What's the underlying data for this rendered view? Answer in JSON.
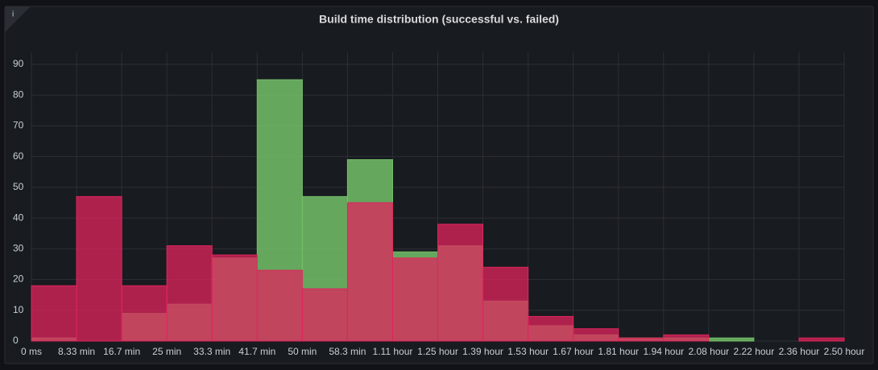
{
  "info_icon": "i",
  "chart_data": {
    "type": "histogram",
    "title": "Build time distribution (successful vs. failed)",
    "bins": [
      0,
      8.33,
      16.67,
      25,
      33.33,
      41.67,
      50,
      58.33,
      66.67,
      75,
      83.33,
      91.67,
      100,
      108.33,
      116.67,
      125,
      133.33,
      141.67,
      150
    ],
    "series": [
      {
        "color": "#73bf69",
        "values": [
          1,
          0,
          9,
          12,
          27,
          85,
          47,
          59,
          29,
          31,
          13,
          5,
          2,
          1,
          1,
          1,
          0,
          0
        ]
      },
      {
        "color": "#e0245e",
        "values": [
          18,
          47,
          18,
          31,
          28,
          23,
          17,
          45,
          27,
          38,
          24,
          8,
          4,
          1,
          2,
          0,
          0,
          1
        ]
      }
    ],
    "xlim": [
      0,
      150
    ],
    "xticks": [
      {
        "value": 0,
        "label": "0 ms"
      },
      {
        "value": 8.33,
        "label": "8.33 min"
      },
      {
        "value": 16.67,
        "label": "16.7 min"
      },
      {
        "value": 25,
        "label": "25 min"
      },
      {
        "value": 33.33,
        "label": "33.3 min"
      },
      {
        "value": 41.67,
        "label": "41.7 min"
      },
      {
        "value": 50,
        "label": "50 min"
      },
      {
        "value": 58.33,
        "label": "58.3 min"
      },
      {
        "value": 66.67,
        "label": "1.11 hour"
      },
      {
        "value": 75,
        "label": "1.25 hour"
      },
      {
        "value": 83.33,
        "label": "1.39 hour"
      },
      {
        "value": 91.67,
        "label": "1.53 hour"
      },
      {
        "value": 100,
        "label": "1.67 hour"
      },
      {
        "value": 108.33,
        "label": "1.81 hour"
      },
      {
        "value": 116.67,
        "label": "1.94 hour"
      },
      {
        "value": 125,
        "label": "2.08 hour"
      },
      {
        "value": 133.33,
        "label": "2.22 hour"
      },
      {
        "value": 141.67,
        "label": "2.36 hour"
      },
      {
        "value": 150,
        "label": "2.50 hour"
      }
    ],
    "ylim": [
      0,
      90
    ],
    "yticks": [
      0,
      10,
      20,
      30,
      40,
      50,
      60,
      70,
      80,
      90
    ],
    "grid": true
  }
}
